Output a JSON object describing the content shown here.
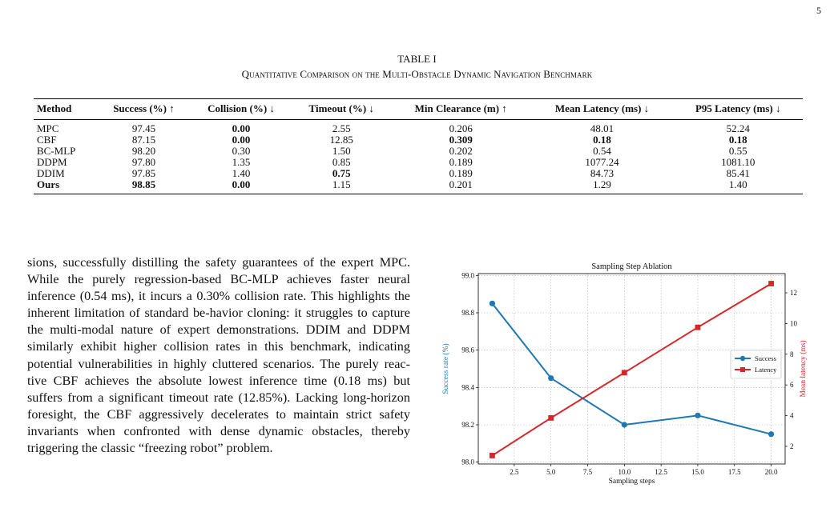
{
  "page_number": "5",
  "table": {
    "label": "TABLE I",
    "caption": "Quantitative Comparison on the Multi-Obstacle Dynamic Navigation Benchmark",
    "headers": [
      "Method",
      "Success (%) ↑",
      "Collision (%) ↓",
      "Timeout (%) ↓",
      "Min Clearance (m) ↑",
      "Mean Latency (ms) ↓",
      "P95 Latency (ms) ↓"
    ],
    "rows": [
      {
        "cells": [
          "MPC",
          "97.45",
          "0.00",
          "2.55",
          "0.206",
          "48.01",
          "52.24"
        ],
        "bold": [
          false,
          false,
          true,
          false,
          false,
          false,
          false
        ]
      },
      {
        "cells": [
          "CBF",
          "87.15",
          "0.00",
          "12.85",
          "0.309",
          "0.18",
          "0.18"
        ],
        "bold": [
          false,
          false,
          true,
          false,
          true,
          true,
          true
        ]
      },
      {
        "cells": [
          "BC-MLP",
          "98.20",
          "0.30",
          "1.50",
          "0.202",
          "0.54",
          "0.55"
        ],
        "bold": [
          false,
          false,
          false,
          false,
          false,
          false,
          false
        ]
      },
      {
        "cells": [
          "DDPM",
          "97.80",
          "1.35",
          "0.85",
          "0.189",
          "1077.24",
          "1081.10"
        ],
        "bold": [
          false,
          false,
          false,
          false,
          false,
          false,
          false
        ]
      },
      {
        "cells": [
          "DDIM",
          "97.85",
          "1.40",
          "0.75",
          "0.189",
          "84.73",
          "85.41"
        ],
        "bold": [
          false,
          false,
          false,
          true,
          false,
          false,
          false
        ]
      },
      {
        "cells": [
          "Ours",
          "98.85",
          "0.00",
          "1.15",
          "0.201",
          "1.29",
          "1.40"
        ],
        "bold": [
          true,
          true,
          true,
          false,
          false,
          false,
          false
        ]
      }
    ]
  },
  "paragraph": "sions, successfully distilling the safety guarantees of the expert MPC. While the purely regression-based BC-MLP achieves faster neural inference (0.54 ms), it incurs a 0.30% collision rate. This highlights the inherent limitation of standard be-havior cloning: it struggles to capture the multi-modal nature of expert demonstrations. DDIM and DDPM similarly exhibit higher collision rates in this benchmark, indicating potential vulnerabilities in highly cluttered scenarios. The purely reac-tive CBF achieves the absolute lowest inference time (0.18 ms) but suffers from a significant timeout rate (12.85%). Lacking long-horizon foresight, the CBF aggressively decelerates to maintain strict safety invariants when confronted with dense dynamic obstacles, thereby triggering the classic “freezing robot” problem.",
  "chart_data": {
    "type": "line",
    "title": "Sampling Step Ablation",
    "xlabel": "Sampling steps",
    "ylabel": "Success rate (%)",
    "ylabel_right": "Mean latency (ms)",
    "x": [
      1,
      5,
      10,
      15,
      20
    ],
    "xlim": [
      0.05,
      20.95
    ],
    "xticks": [
      "2.5",
      "5.0",
      "7.5",
      "10.0",
      "12.5",
      "15.0",
      "17.5",
      "20.0"
    ],
    "ylim": [
      97.99,
      99.01
    ],
    "yticks": [
      "98.0",
      "98.2",
      "98.4",
      "98.6",
      "98.8",
      "99.0"
    ],
    "ylim_right": [
      0.85,
      13.25
    ],
    "yticks_right": [
      "2",
      "4",
      "6",
      "8",
      "10",
      "12"
    ],
    "grid": true,
    "legend_position": "center-right",
    "series": [
      {
        "name": "Success",
        "axis": "left",
        "color": "#1f77b4",
        "marker": "circle",
        "values": [
          98.85,
          98.45,
          98.2,
          98.25,
          98.15
        ]
      },
      {
        "name": "Latency",
        "axis": "right",
        "color": "#d62728",
        "marker": "square",
        "values": [
          1.4,
          3.85,
          6.8,
          9.75,
          12.6
        ]
      }
    ]
  }
}
